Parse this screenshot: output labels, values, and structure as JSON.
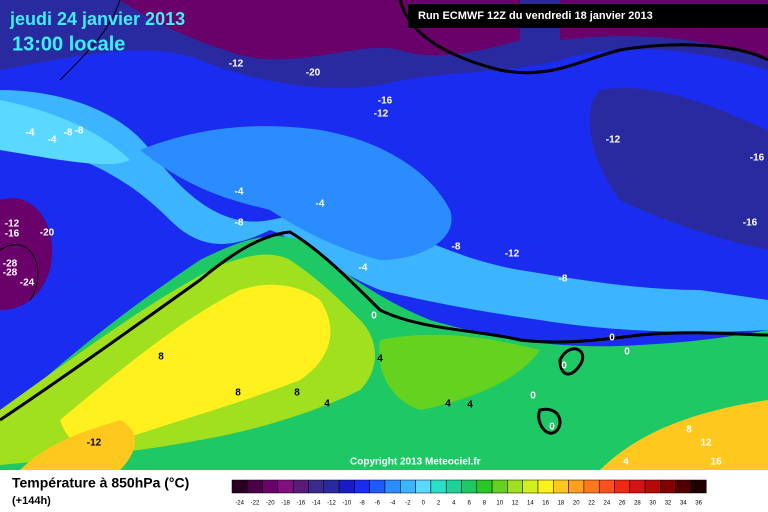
{
  "header": {
    "date": "jeudi 24 janvier 2013",
    "time": "13:00 locale",
    "run": "Run ECMWF 12Z du vendredi 18 janvier 2013"
  },
  "footer": {
    "title": "Température à 850hPa (°C)",
    "lead": "(+144h)",
    "copyright": "Copyright 2013 Meteociel.fr"
  },
  "scale": {
    "labels": [
      -24,
      -22,
      -20,
      -18,
      -16,
      -14,
      -12,
      -10,
      -8,
      -6,
      -4,
      -2,
      0,
      2,
      4,
      6,
      8,
      10,
      12,
      14,
      16,
      18,
      20,
      22,
      24,
      26,
      28,
      30,
      32,
      34,
      36
    ],
    "colors": [
      "#2a0022",
      "#4a0048",
      "#6a006a",
      "#80107e",
      "#5a1a7a",
      "#3a2a8a",
      "#2a2aa0",
      "#1a1ac8",
      "#1a2cf0",
      "#1e5aff",
      "#2a8cff",
      "#3cb4ff",
      "#5ad8ff",
      "#2ae0c8",
      "#1ed29a",
      "#1ec864",
      "#28c828",
      "#64d21e",
      "#a0e01e",
      "#d2f01e",
      "#fff01e",
      "#ffc81e",
      "#ffa01e",
      "#ff781e",
      "#ff501e",
      "#f02814",
      "#d21414",
      "#b40a0a",
      "#820000",
      "#500000",
      "#1e0000"
    ]
  },
  "contour_labels": [
    -12,
    -20,
    -16,
    -12,
    -4,
    -4,
    -8,
    -8,
    -12,
    -16,
    -4,
    -4,
    -8,
    -12,
    -16,
    -20,
    -16,
    -8,
    -12,
    -28,
    -28,
    -24,
    -4,
    -8,
    0,
    0,
    0,
    8,
    4,
    0,
    8,
    8,
    4,
    4,
    4,
    0,
    0,
    -12,
    8,
    12,
    16,
    4
  ]
}
